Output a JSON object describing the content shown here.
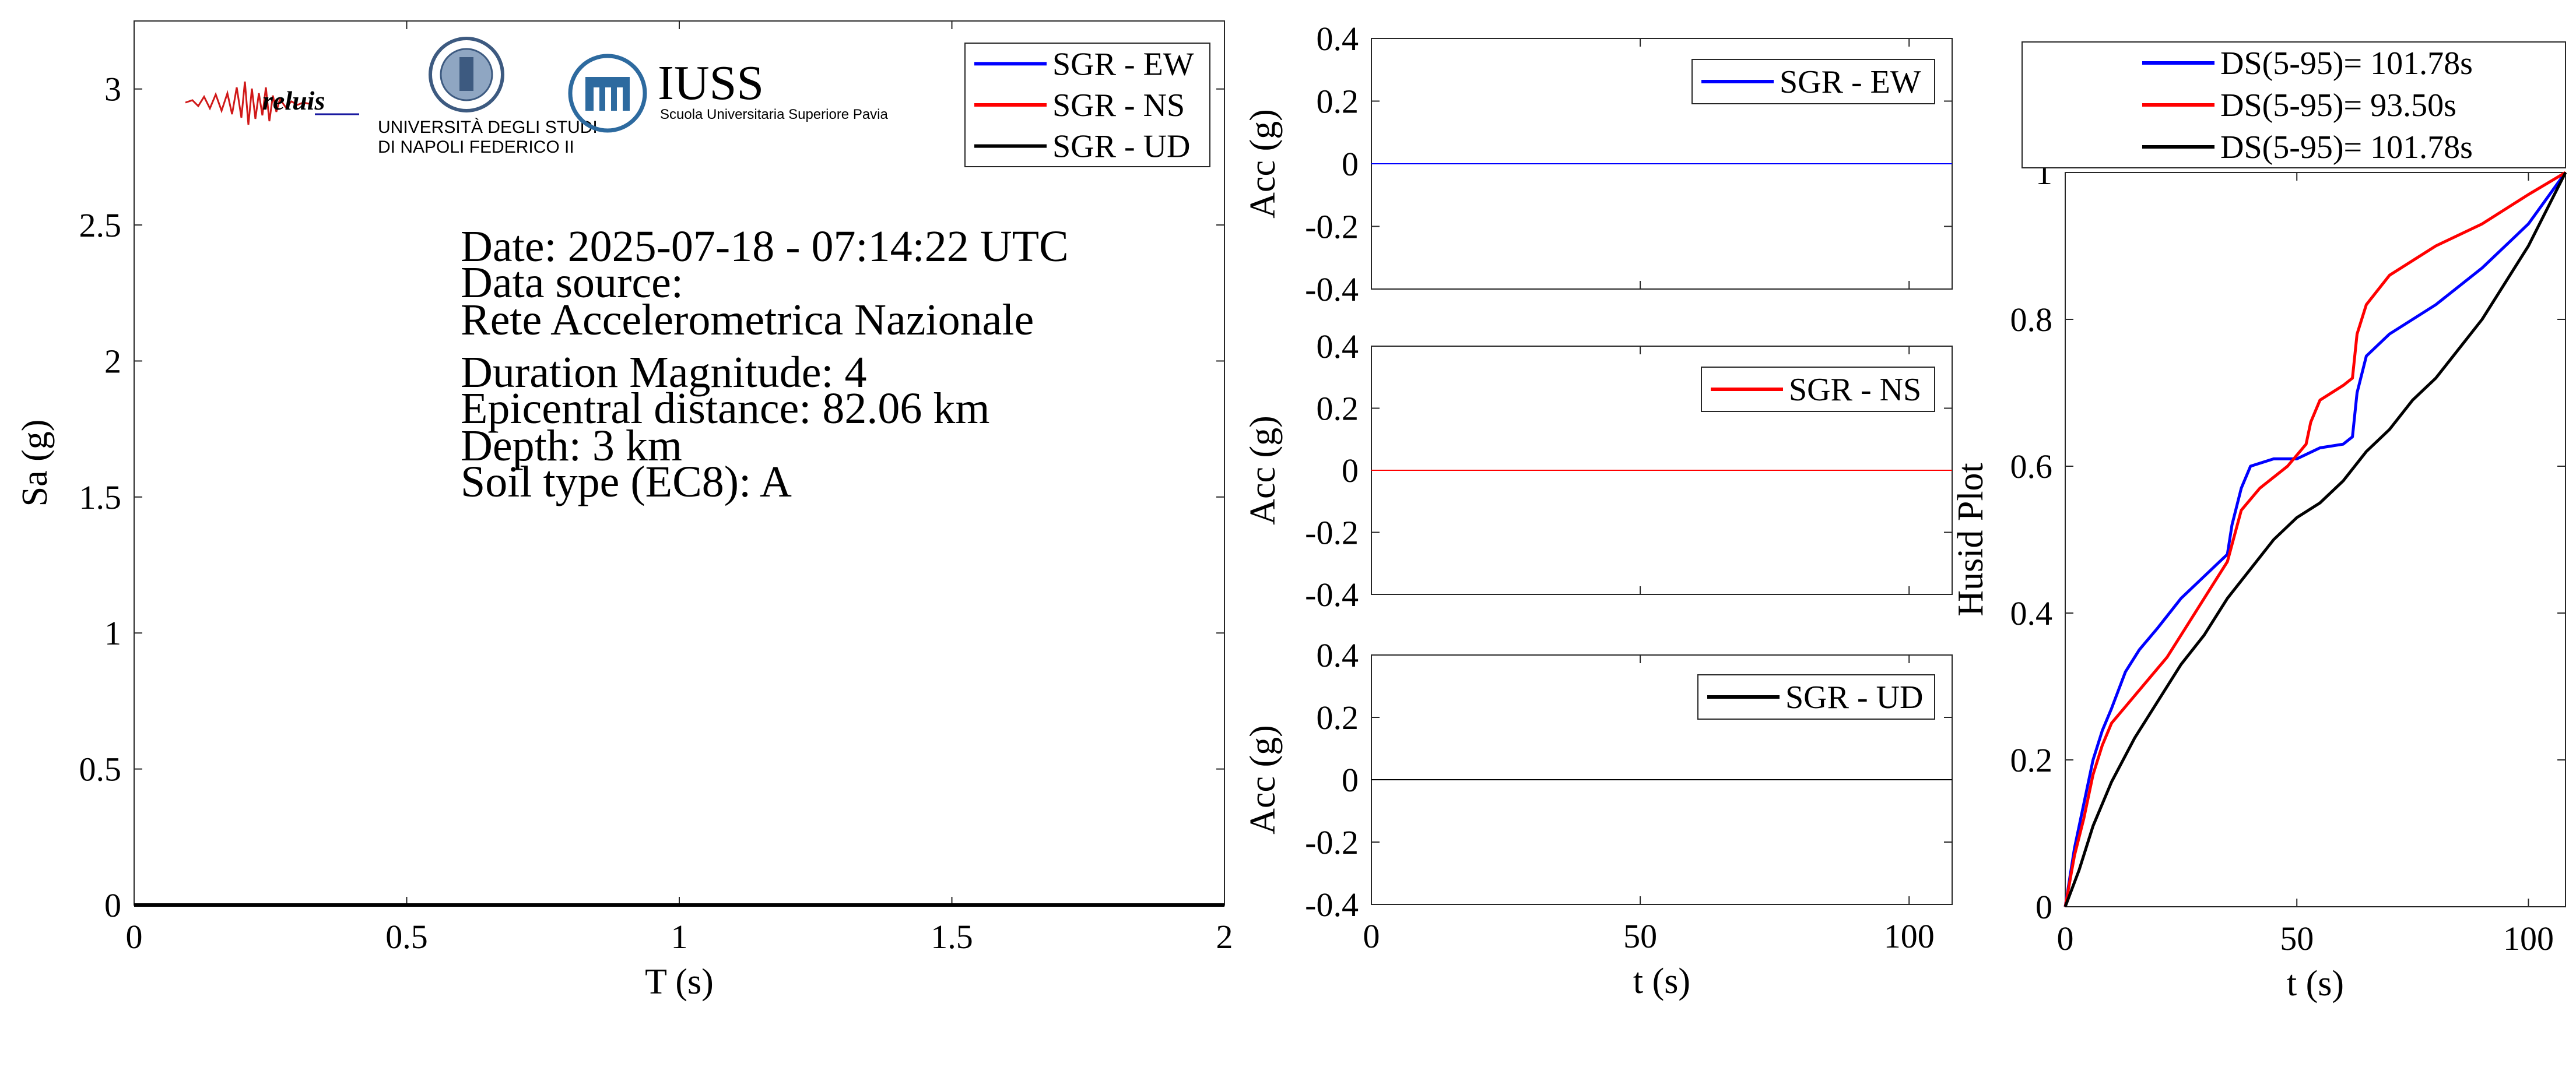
{
  "colors": {
    "ew": "#0000ff",
    "ns": "#ff0000",
    "ud": "#000000",
    "reluis_text": "#1a1aa0",
    "iuss_blue": "#2d6a9f"
  },
  "logos": {
    "reluis": "reluis",
    "unina_line1": "UNIVERSITÀ DEGLI STUDI",
    "unina_line2": "DI NAPOLI FEDERICO II",
    "iuss": "IUSS",
    "iuss_sub": "Scuola Universitaria Superiore Pavia"
  },
  "event_info": {
    "date": "Date: 2025-07-18 - 07:14:22 UTC",
    "source_label": "Data source:",
    "source": "Rete Accelerometrica Nazionale",
    "magnitude": "Duration Magnitude: 4",
    "distance": "Epicentral distance: 82.06 km",
    "depth": "Depth: 3 km",
    "soil": "Soil type (EC8): A"
  },
  "chart_data": [
    {
      "id": "spectrum",
      "type": "line",
      "xlabel": "T (s)",
      "ylabel": "Sa (g)",
      "xlim": [
        0,
        2
      ],
      "ylim": [
        0,
        3.25
      ],
      "xticks": [
        0,
        0.5,
        1,
        1.5,
        2
      ],
      "xtick_labels": [
        "0",
        "0.5",
        "1",
        "1.5",
        "2"
      ],
      "yticks": [
        0,
        0.5,
        1,
        1.5,
        2,
        2.5,
        3
      ],
      "ytick_labels": [
        "0",
        "0.5",
        "1",
        "1.5",
        "2",
        "2.5",
        "3"
      ],
      "legend_position": "top-right",
      "series": [
        {
          "name": "SGR - EW",
          "color_key": "ew",
          "x": [
            0,
            2
          ],
          "y": [
            0,
            0
          ]
        },
        {
          "name": "SGR - NS",
          "color_key": "ns",
          "x": [
            0,
            2
          ],
          "y": [
            0,
            0
          ]
        },
        {
          "name": "SGR - UD",
          "color_key": "ud",
          "x": [
            0,
            2
          ],
          "y": [
            0,
            0
          ]
        }
      ]
    },
    {
      "id": "acc-ew",
      "type": "line",
      "xlabel": "",
      "ylabel": "Acc (g)",
      "xlim": [
        0,
        108
      ],
      "ylim": [
        -0.4,
        0.4
      ],
      "xticks": [
        0,
        50,
        100
      ],
      "xtick_labels": [],
      "yticks": [
        -0.4,
        -0.2,
        0,
        0.2,
        0.4
      ],
      "ytick_labels": [
        "-0.4",
        "-0.2",
        "0",
        "0.2",
        "0.4"
      ],
      "legend_position": "top-right",
      "series": [
        {
          "name": "SGR - EW",
          "color_key": "ew",
          "x": [
            0,
            108
          ],
          "y": [
            0,
            0
          ]
        }
      ]
    },
    {
      "id": "acc-ns",
      "type": "line",
      "xlabel": "",
      "ylabel": "Acc (g)",
      "xlim": [
        0,
        108
      ],
      "ylim": [
        -0.4,
        0.4
      ],
      "xticks": [
        0,
        50,
        100
      ],
      "xtick_labels": [],
      "yticks": [
        -0.4,
        -0.2,
        0,
        0.2,
        0.4
      ],
      "ytick_labels": [
        "-0.4",
        "-0.2",
        "0",
        "0.2",
        "0.4"
      ],
      "legend_position": "top-right",
      "series": [
        {
          "name": "SGR - NS",
          "color_key": "ns",
          "x": [
            0,
            108
          ],
          "y": [
            0,
            0
          ]
        }
      ]
    },
    {
      "id": "acc-ud",
      "type": "line",
      "xlabel": "t (s)",
      "ylabel": "Acc (g)",
      "xlim": [
        0,
        108
      ],
      "ylim": [
        -0.4,
        0.4
      ],
      "xticks": [
        0,
        50,
        100
      ],
      "xtick_labels": [
        "0",
        "50",
        "100"
      ],
      "yticks": [
        -0.4,
        -0.2,
        0,
        0.2,
        0.4
      ],
      "ytick_labels": [
        "-0.4",
        "-0.2",
        "0",
        "0.2",
        "0.4"
      ],
      "legend_position": "top-right",
      "series": [
        {
          "name": "SGR - UD",
          "color_key": "ud",
          "x": [
            0,
            108
          ],
          "y": [
            0,
            0
          ]
        }
      ]
    },
    {
      "id": "husid",
      "type": "line",
      "xlabel": "t (s)",
      "ylabel": "Husid Plot",
      "xlim": [
        0,
        108
      ],
      "ylim": [
        0,
        1
      ],
      "xticks": [
        0,
        50,
        100
      ],
      "xtick_labels": [
        "0",
        "50",
        "100"
      ],
      "yticks": [
        0,
        0.2,
        0.4,
        0.6,
        0.8,
        1
      ],
      "ytick_labels": [
        "0",
        "0.2",
        "0.4",
        "0.6",
        "0.8",
        "1"
      ],
      "legend_position": "top-outside",
      "series": [
        {
          "name": "DS(5-95)= 101.78s",
          "color_key": "ew",
          "x": [
            0,
            2,
            4,
            6,
            8,
            10,
            13,
            16,
            20,
            25,
            30,
            35,
            36,
            38,
            40,
            45,
            50,
            55,
            60,
            62,
            63,
            65,
            70,
            80,
            90,
            100,
            108
          ],
          "y": [
            0,
            0.08,
            0.14,
            0.2,
            0.24,
            0.27,
            0.32,
            0.35,
            0.38,
            0.42,
            0.45,
            0.48,
            0.52,
            0.57,
            0.6,
            0.61,
            0.61,
            0.625,
            0.63,
            0.64,
            0.7,
            0.75,
            0.78,
            0.82,
            0.87,
            0.93,
            1
          ]
        },
        {
          "name": "DS(5-95)= 93.50s",
          "color_key": "ns",
          "x": [
            0,
            2,
            4,
            6,
            8,
            10,
            14,
            18,
            22,
            26,
            30,
            35,
            38,
            42,
            48,
            52,
            53,
            55,
            60,
            62,
            63,
            65,
            70,
            80,
            90,
            100,
            108
          ],
          "y": [
            0,
            0.07,
            0.12,
            0.18,
            0.22,
            0.25,
            0.28,
            0.31,
            0.34,
            0.38,
            0.42,
            0.47,
            0.54,
            0.57,
            0.6,
            0.63,
            0.66,
            0.69,
            0.71,
            0.72,
            0.78,
            0.82,
            0.86,
            0.9,
            0.93,
            0.97,
            1
          ]
        },
        {
          "name": "DS(5-95)= 101.78s",
          "color_key": "ud",
          "x": [
            0,
            3,
            6,
            10,
            15,
            20,
            25,
            30,
            35,
            40,
            45,
            50,
            55,
            60,
            65,
            70,
            75,
            80,
            85,
            90,
            95,
            100,
            104,
            108
          ],
          "y": [
            0,
            0.05,
            0.11,
            0.17,
            0.23,
            0.28,
            0.33,
            0.37,
            0.42,
            0.46,
            0.5,
            0.53,
            0.55,
            0.58,
            0.62,
            0.65,
            0.69,
            0.72,
            0.76,
            0.8,
            0.85,
            0.9,
            0.95,
            1
          ]
        }
      ]
    }
  ]
}
